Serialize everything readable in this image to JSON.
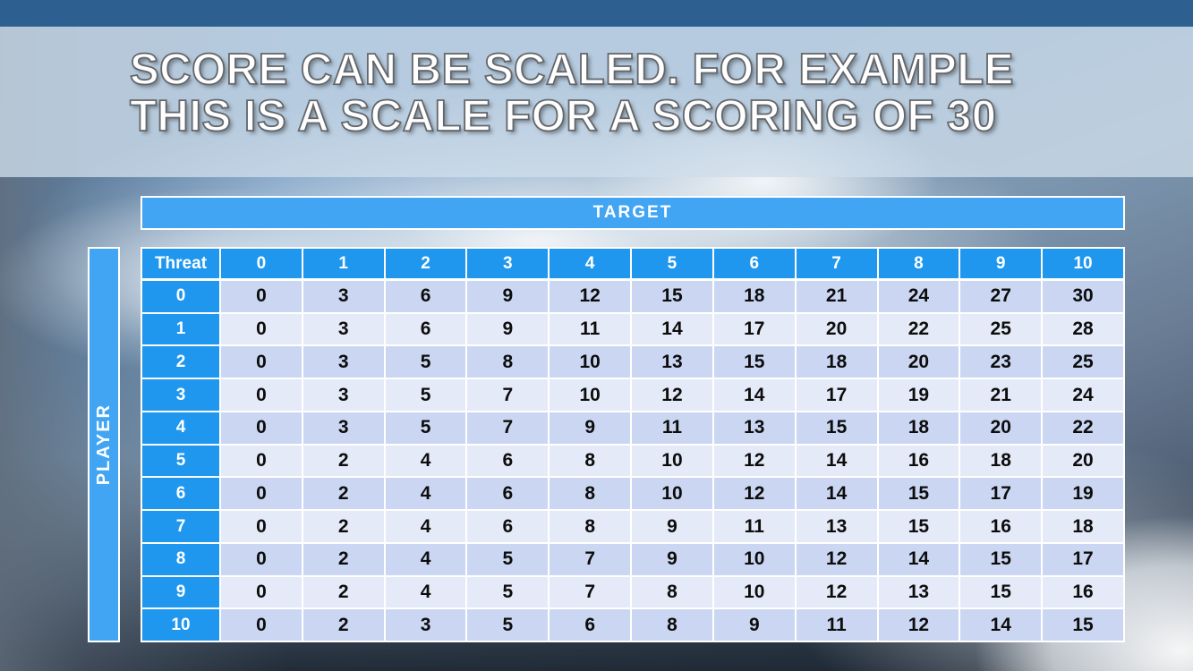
{
  "slide": {
    "title_line1": "SCORE CAN BE SCALED. FOR EXAMPLE",
    "title_line2": "THIS IS A SCALE FOR A SCORING OF 30"
  },
  "axes": {
    "target_label": "TARGET",
    "player_label": "PLAYER"
  },
  "table": {
    "corner_label": "Threat",
    "columns": [
      "0",
      "1",
      "2",
      "3",
      "4",
      "5",
      "6",
      "7",
      "8",
      "9",
      "10"
    ],
    "rows": [
      {
        "threat": "0",
        "values": [
          0,
          3,
          6,
          9,
          12,
          15,
          18,
          21,
          24,
          27,
          30
        ]
      },
      {
        "threat": "1",
        "values": [
          0,
          3,
          6,
          9,
          11,
          14,
          17,
          20,
          22,
          25,
          28
        ]
      },
      {
        "threat": "2",
        "values": [
          0,
          3,
          5,
          8,
          10,
          13,
          15,
          18,
          20,
          23,
          25
        ]
      },
      {
        "threat": "3",
        "values": [
          0,
          3,
          5,
          7,
          10,
          12,
          14,
          17,
          19,
          21,
          24
        ]
      },
      {
        "threat": "4",
        "values": [
          0,
          3,
          5,
          7,
          9,
          11,
          13,
          15,
          18,
          20,
          22
        ]
      },
      {
        "threat": "5",
        "values": [
          0,
          2,
          4,
          6,
          8,
          10,
          12,
          14,
          16,
          18,
          20
        ]
      },
      {
        "threat": "6",
        "values": [
          0,
          2,
          4,
          6,
          8,
          10,
          12,
          14,
          15,
          17,
          19
        ]
      },
      {
        "threat": "7",
        "values": [
          0,
          2,
          4,
          6,
          8,
          9,
          11,
          13,
          15,
          16,
          18
        ]
      },
      {
        "threat": "8",
        "values": [
          0,
          2,
          4,
          5,
          7,
          9,
          10,
          12,
          14,
          15,
          17
        ]
      },
      {
        "threat": "9",
        "values": [
          0,
          2,
          4,
          5,
          7,
          8,
          10,
          12,
          13,
          15,
          16
        ]
      },
      {
        "threat": "10",
        "values": [
          0,
          2,
          3,
          5,
          6,
          8,
          9,
          11,
          12,
          14,
          15
        ]
      }
    ]
  },
  "colors": {
    "top_bar": "#2d5f91",
    "axis_bar_blue": "#42a5f3",
    "header_cell_blue": "#1f97ef",
    "row_dark": "#cbd7f2",
    "row_light": "#e5eaf8",
    "title_text": "#ffffff",
    "body_text": "#0d0d0d"
  }
}
